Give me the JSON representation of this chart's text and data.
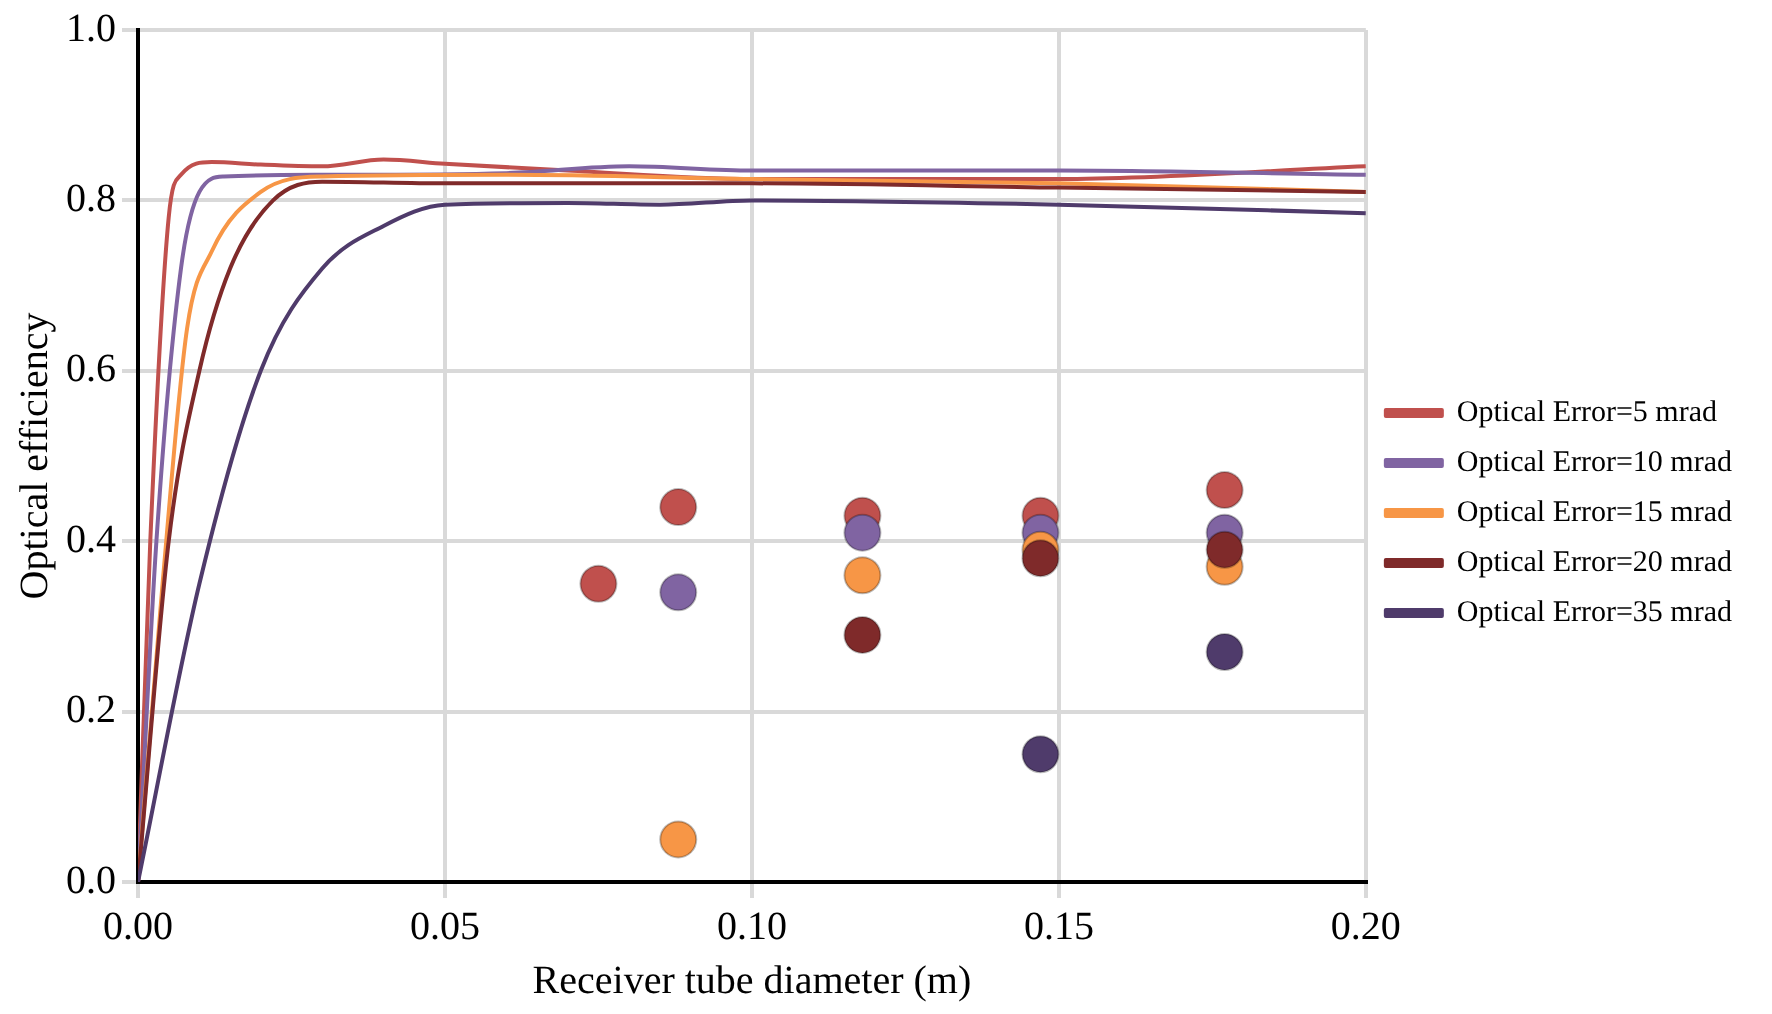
{
  "chart_data": {
    "type": "line",
    "xlabel": "Receiver tube diameter (m)",
    "ylabel": "Optical efficiency",
    "xlim": [
      0,
      0.2
    ],
    "xticks": [
      {
        "value": 0,
        "label": "0.00"
      },
      {
        "value": 0.05,
        "label": "0.05"
      },
      {
        "value": 0.1,
        "label": "0.10"
      },
      {
        "value": 0.15,
        "label": "0.15"
      },
      {
        "value": 0.2,
        "label": "0.20"
      }
    ],
    "ylim": [
      0,
      1
    ],
    "yticks": [
      {
        "value": 0,
        "label": "0.0"
      },
      {
        "value": 0.2,
        "label": "0.2"
      },
      {
        "value": 0.4,
        "label": "0.4"
      },
      {
        "value": 0.6,
        "label": "0.6"
      },
      {
        "value": 0.8,
        "label": "0.8"
      },
      {
        "value": 1,
        "label": "1.0"
      }
    ],
    "grid": true,
    "legend": "right",
    "series": [
      {
        "name": "Optical Error=5 mrad",
        "color": "#c0504d",
        "x": [
          0,
          0.002,
          0.005,
          0.007,
          0.012,
          0.02,
          0.03,
          0.04,
          0.05,
          0.07,
          0.1,
          0.15,
          0.2
        ],
        "values": [
          0,
          0.4,
          0.78,
          0.83,
          0.845,
          0.842,
          0.84,
          0.848,
          0.843,
          0.835,
          0.825,
          0.825,
          0.84
        ]
      },
      {
        "name": "Optical Error=10 mrad",
        "color": "#8064a2",
        "x": [
          0,
          0.003,
          0.007,
          0.01,
          0.014,
          0.03,
          0.06,
          0.08,
          0.1,
          0.15,
          0.2
        ],
        "values": [
          0,
          0.4,
          0.72,
          0.81,
          0.828,
          0.83,
          0.832,
          0.84,
          0.835,
          0.835,
          0.83
        ]
      },
      {
        "name": "Optical Error=15 mrad",
        "color": "#f79646",
        "x": [
          0,
          0.004,
          0.008,
          0.012,
          0.02,
          0.03,
          0.06,
          0.1,
          0.15,
          0.2
        ],
        "values": [
          0,
          0.35,
          0.65,
          0.74,
          0.81,
          0.828,
          0.83,
          0.825,
          0.82,
          0.81
        ]
      },
      {
        "name": "Optical Error=20 mrad",
        "color": "#7f2a2a",
        "x": [
          0,
          0.005,
          0.01,
          0.015,
          0.022,
          0.03,
          0.05,
          0.1,
          0.15,
          0.2
        ],
        "values": [
          0,
          0.4,
          0.6,
          0.72,
          0.8,
          0.822,
          0.82,
          0.82,
          0.815,
          0.81
        ]
      },
      {
        "name": "Optical Error=35 mrad",
        "color": "#4f3b6b",
        "x": [
          0,
          0.01,
          0.02,
          0.03,
          0.04,
          0.05,
          0.07,
          0.085,
          0.1,
          0.15,
          0.2
        ],
        "values": [
          0,
          0.35,
          0.6,
          0.72,
          0.77,
          0.795,
          0.797,
          0.795,
          0.8,
          0.795,
          0.785
        ]
      },
      {
        "type": "scatter",
        "marker": "circle",
        "color": "#c0504d",
        "x": [
          0.075,
          0.088,
          0.118,
          0.147,
          0.177
        ],
        "values": [
          0.35,
          0.44,
          0.43,
          0.43,
          0.46
        ]
      },
      {
        "type": "scatter",
        "marker": "circle",
        "color": "#8064a2",
        "x": [
          0.088,
          0.118,
          0.147,
          0.177
        ],
        "values": [
          0.34,
          0.41,
          0.41,
          0.41
        ]
      },
      {
        "type": "scatter",
        "marker": "circle",
        "color": "#f79646",
        "x": [
          0.088,
          0.118,
          0.147,
          0.177
        ],
        "values": [
          0.05,
          0.36,
          0.39,
          0.37
        ]
      },
      {
        "type": "scatter",
        "marker": "circle",
        "color": "#7f2a2a",
        "x": [
          0.118,
          0.147,
          0.177
        ],
        "values": [
          0.29,
          0.38,
          0.39
        ]
      },
      {
        "type": "scatter",
        "marker": "circle",
        "color": "#4f3b6b",
        "x": [
          0.147,
          0.177
        ],
        "values": [
          0.15,
          0.27
        ]
      }
    ]
  }
}
